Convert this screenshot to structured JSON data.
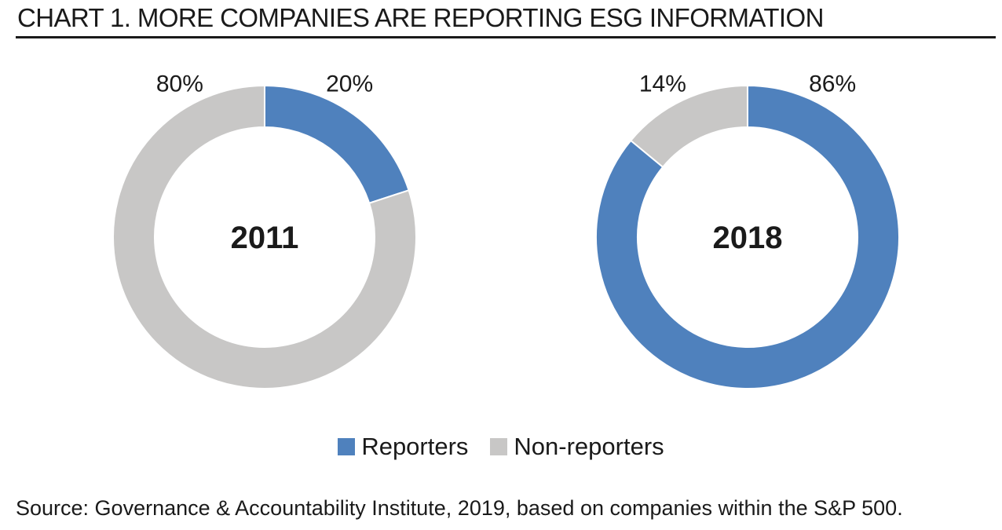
{
  "title": "CHART 1. MORE COMPANIES ARE REPORTING ESG INFORMATION",
  "source": "Source: Governance & Accountability Institute, 2019, based on companies within the S&P 500.",
  "colors": {
    "reporters": "#4f81bd",
    "non_reporters": "#c8c7c6"
  },
  "legend": {
    "reporters": "Reporters",
    "non_reporters": "Non-reporters"
  },
  "chart_data": [
    {
      "type": "pie",
      "subtype": "donut",
      "center_label": "2011",
      "categories": [
        "Reporters",
        "Non-reporters"
      ],
      "values": [
        20,
        80
      ],
      "labels": [
        "20%",
        "80%"
      ]
    },
    {
      "type": "pie",
      "subtype": "donut",
      "center_label": "2018",
      "categories": [
        "Reporters",
        "Non-reporters"
      ],
      "values": [
        86,
        14
      ],
      "labels": [
        "86%",
        "14%"
      ]
    }
  ]
}
